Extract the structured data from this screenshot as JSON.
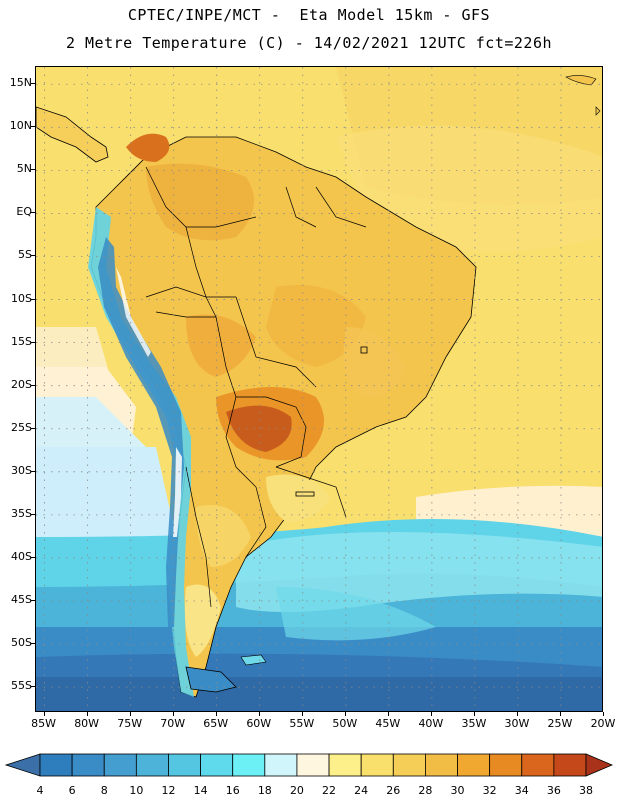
{
  "header": {
    "line1": "CPTEC/INPE/MCT -  Eta Model 15km - GFS",
    "line2": "2 Metre Temperature (C) - 14/02/2021 12UTC fct=226h"
  },
  "map": {
    "lat_labels": [
      "15N",
      "10N",
      "5N",
      "EQ",
      "5S",
      "10S",
      "15S",
      "20S",
      "25S",
      "30S",
      "35S",
      "40S",
      "45S",
      "50S",
      "55S"
    ],
    "lon_labels": [
      "85W",
      "80W",
      "75W",
      "70W",
      "65W",
      "60W",
      "55W",
      "50W",
      "45W",
      "40W",
      "35W",
      "30W",
      "25W",
      "20W"
    ],
    "lat_range": [
      -58,
      17
    ],
    "lon_range": [
      -86,
      -20
    ]
  },
  "colorbar": {
    "labels": [
      "4",
      "6",
      "8",
      "10",
      "12",
      "14",
      "16",
      "18",
      "20",
      "22",
      "24",
      "26",
      "28",
      "30",
      "32",
      "34",
      "36",
      "38"
    ],
    "colors": [
      "#3b6fa8",
      "#2e7ebd",
      "#3a8cc6",
      "#449ecf",
      "#4db3d9",
      "#55c6e2",
      "#5fd9ec",
      "#6cf0f6",
      "#d0f6fb",
      "#fff6df",
      "#fdf08a",
      "#f9e06c",
      "#f5ce58",
      "#f2bd45",
      "#f0a830",
      "#e88a22",
      "#d9661c",
      "#c5481a",
      "#a9331a"
    ]
  }
}
